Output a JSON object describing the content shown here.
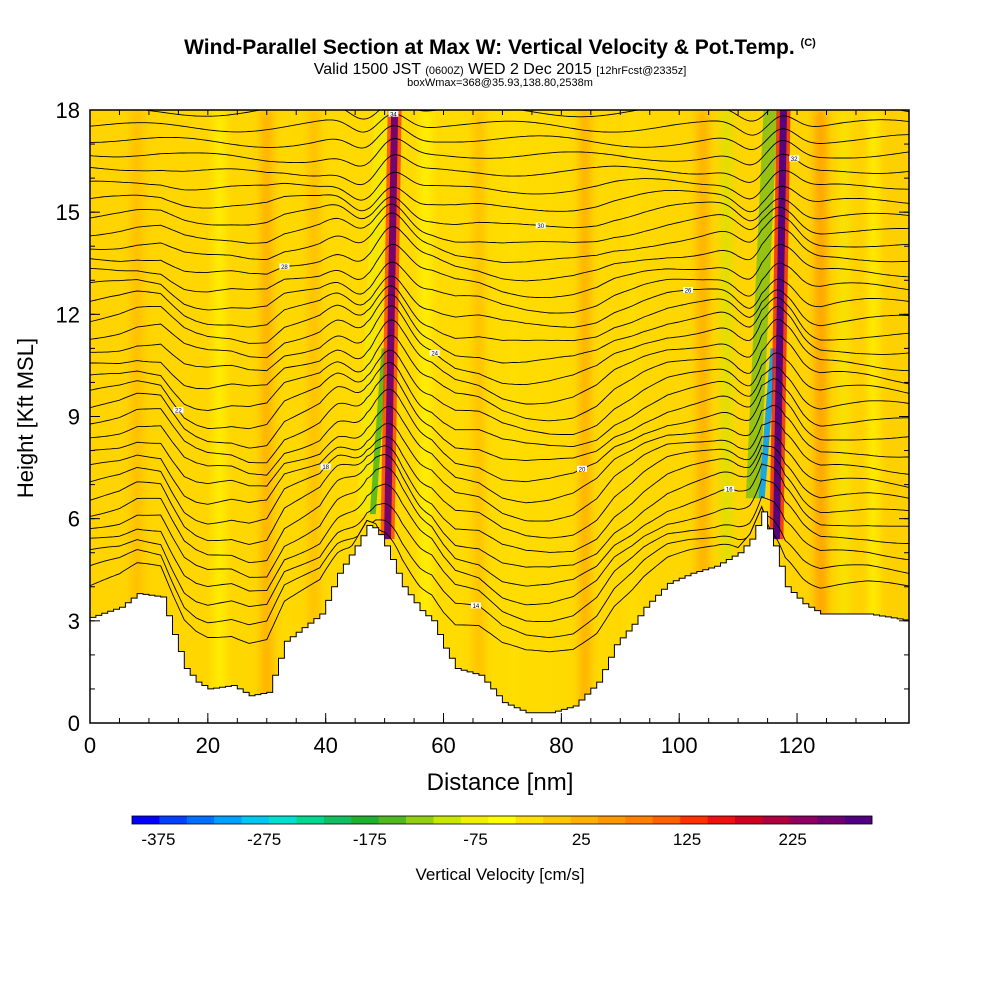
{
  "title": {
    "main": "Wind-Parallel Section at Max W: Vertical Velocity & Pot.Temp.",
    "copyright": "(C)",
    "valid_prefix": "Valid 1500 JST",
    "valid_utc": "(0600Z)",
    "valid_date": "WED 2 Dec 2015",
    "fcst": "[12hrFcst@2335z]",
    "box": "boxWmax=368@35.93,138.80,2538m"
  },
  "chart_data": {
    "type": "heatmap",
    "xlabel": "Distance [nm]",
    "ylabel": "Height [Kft MSL]",
    "xlim": [
      0,
      139
    ],
    "ylim": [
      0,
      18
    ],
    "x_ticks": [
      0,
      20,
      40,
      60,
      80,
      100,
      120
    ],
    "y_ticks": [
      0,
      3,
      6,
      9,
      12,
      15,
      18
    ],
    "colorbar": {
      "label": "Vertical Velocity [cm/s]",
      "tick_values": [
        -375,
        -275,
        -175,
        -75,
        25,
        125,
        225
      ],
      "range": [
        -400,
        300
      ],
      "colors": [
        "#0000ff",
        "#0040ff",
        "#0070ff",
        "#00a0ff",
        "#00c8f0",
        "#00e0d0",
        "#00d890",
        "#10c060",
        "#20b030",
        "#50b820",
        "#90d010",
        "#c8e800",
        "#f0f000",
        "#ffff00",
        "#ffe000",
        "#ffc800",
        "#ffb000",
        "#ff9800",
        "#ff8000",
        "#ff6000",
        "#ff3000",
        "#f01010",
        "#d00020",
        "#b00040",
        "#900060",
        "#700070",
        "#500080"
      ]
    },
    "terrain_kft": [
      [
        0,
        3.1
      ],
      [
        5,
        3.4
      ],
      [
        8,
        3.8
      ],
      [
        12,
        3.7
      ],
      [
        14,
        2.6
      ],
      [
        16,
        1.6
      ],
      [
        18,
        1.2
      ],
      [
        20,
        1.0
      ],
      [
        24,
        1.1
      ],
      [
        27,
        0.8
      ],
      [
        30,
        0.9
      ],
      [
        33,
        2.4
      ],
      [
        36,
        2.8
      ],
      [
        39,
        3.2
      ],
      [
        42,
        4.4
      ],
      [
        45,
        5.2
      ],
      [
        47,
        5.8
      ],
      [
        48.5,
        5.7
      ],
      [
        50,
        5.2
      ],
      [
        53,
        4.0
      ],
      [
        56,
        3.3
      ],
      [
        58,
        3.0
      ],
      [
        60,
        2.2
      ],
      [
        62,
        1.6
      ],
      [
        66,
        1.4
      ],
      [
        70,
        0.6
      ],
      [
        74,
        0.3
      ],
      [
        78,
        0.3
      ],
      [
        82,
        0.5
      ],
      [
        86,
        1.2
      ],
      [
        89,
        2.3
      ],
      [
        92,
        2.9
      ],
      [
        94,
        3.4
      ],
      [
        98,
        4.1
      ],
      [
        102,
        4.4
      ],
      [
        106,
        4.6
      ],
      [
        110,
        5.0
      ],
      [
        112,
        5.4
      ],
      [
        114,
        6.2
      ],
      [
        116,
        5.2
      ],
      [
        118,
        4.0
      ],
      [
        121,
        3.5
      ],
      [
        124,
        3.2
      ],
      [
        128,
        3.2
      ],
      [
        132,
        3.2
      ],
      [
        139,
        3.0
      ]
    ],
    "updraft_cores": [
      {
        "x": 50,
        "w_peak": 250
      },
      {
        "x": 116,
        "w_peak": 300
      }
    ],
    "downdraft_cores": [
      {
        "x": 48,
        "w_peak": -150
      },
      {
        "x": 114,
        "w_peak": -300
      }
    ],
    "isentrope_labels": [
      "14",
      "16",
      "18",
      "20",
      "22",
      "24",
      "26",
      "28",
      "30",
      "32",
      "34"
    ]
  }
}
